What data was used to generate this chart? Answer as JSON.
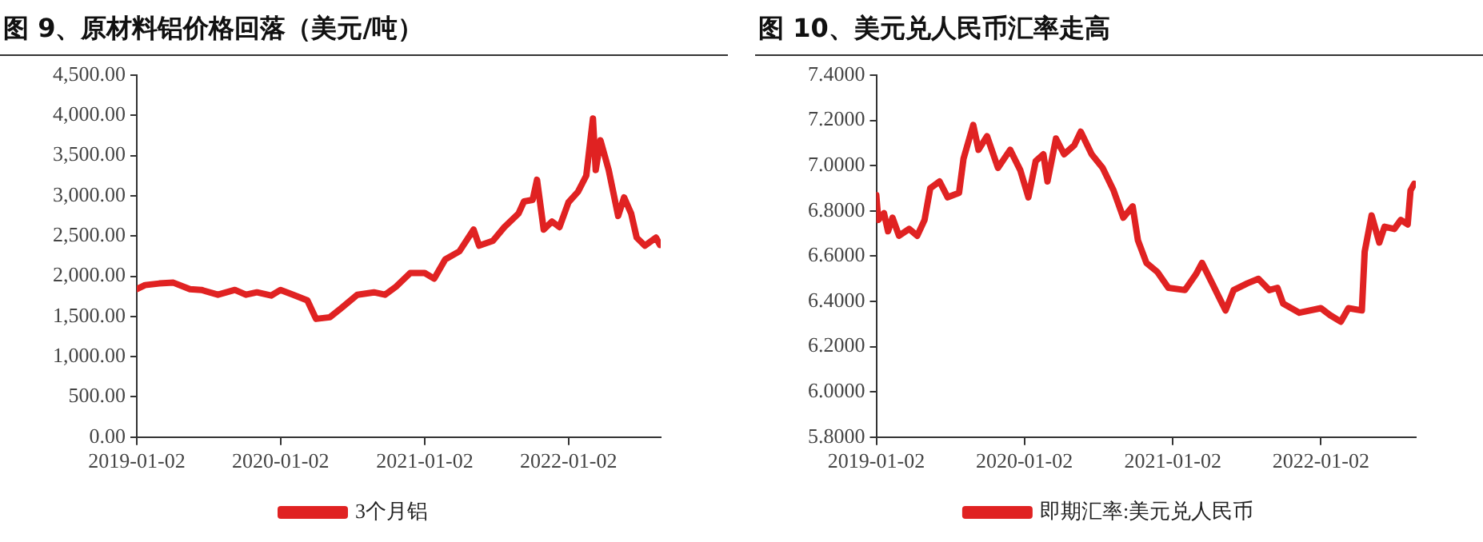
{
  "chart_data": [
    {
      "type": "line",
      "title": "图 9、原材料铝价格回落（美元/吨）",
      "legend": "bottom",
      "grid": false,
      "marker": "none",
      "line_style": "solid",
      "xlim": [
        "2019-01-02",
        "2022-08-24"
      ],
      "xticks": [
        "2019-01-02",
        "2020-01-02",
        "2021-01-02",
        "2022-01-02"
      ],
      "ylim": [
        0,
        4500
      ],
      "yticks": [
        {
          "value": 0,
          "label": "0.00"
        },
        {
          "value": 500,
          "label": "500.00"
        },
        {
          "value": 1000,
          "label": "1,000.00"
        },
        {
          "value": 1500,
          "label": "1,500.00"
        },
        {
          "value": 2000,
          "label": "2,000.00"
        },
        {
          "value": 2500,
          "label": "2,500.00"
        },
        {
          "value": 3000,
          "label": "3,000.00"
        },
        {
          "value": 3500,
          "label": "3,500.00"
        },
        {
          "value": 4000,
          "label": "4,000.00"
        },
        {
          "value": 4500,
          "label": "4,500.00"
        }
      ],
      "x": [
        "2019-01-02",
        "2019-01-23",
        "2019-02-28",
        "2019-04-05",
        "2019-05-17",
        "2019-06-15",
        "2019-07-27",
        "2019-09-08",
        "2019-10-06",
        "2019-11-03",
        "2019-12-09",
        "2020-01-02",
        "2020-02-03",
        "2020-03-10",
        "2020-04-01",
        "2020-05-06",
        "2020-06-03",
        "2020-07-15",
        "2020-08-26",
        "2020-09-23",
        "2020-10-21",
        "2020-11-26",
        "2021-01-02",
        "2021-01-26",
        "2021-02-23",
        "2021-03-31",
        "2021-05-06",
        "2021-05-20",
        "2021-06-24",
        "2021-07-23",
        "2021-08-28",
        "2021-09-11",
        "2021-10-03",
        "2021-10-14",
        "2021-10-31",
        "2021-11-21",
        "2021-12-10",
        "2022-01-02",
        "2022-01-26",
        "2022-02-16",
        "2022-03-05",
        "2022-03-12",
        "2022-03-24",
        "2022-04-14",
        "2022-05-08",
        "2022-05-23",
        "2022-06-10",
        "2022-06-24",
        "2022-07-15",
        "2022-08-12",
        "2022-08-22"
      ],
      "series": [
        {
          "name": "3个月铝",
          "color": "#e02222",
          "values": [
            1840,
            1890,
            1910,
            1920,
            1840,
            1830,
            1770,
            1830,
            1770,
            1800,
            1760,
            1830,
            1770,
            1700,
            1470,
            1490,
            1600,
            1770,
            1800,
            1770,
            1870,
            2040,
            2040,
            1970,
            2210,
            2310,
            2580,
            2380,
            2440,
            2610,
            2780,
            2930,
            2950,
            3200,
            2580,
            2680,
            2610,
            2920,
            3050,
            3250,
            3960,
            3320,
            3690,
            3320,
            2750,
            2980,
            2780,
            2480,
            2380,
            2480,
            2390
          ]
        }
      ]
    },
    {
      "type": "line",
      "title": "图 10、美元兑人民币汇率走高",
      "legend": "bottom",
      "grid": false,
      "marker": "none",
      "line_style": "solid",
      "xlim": [
        "2019-01-02",
        "2022-08-24"
      ],
      "xticks": [
        "2019-01-02",
        "2020-01-02",
        "2021-01-02",
        "2022-01-02"
      ],
      "ylim": [
        5.8,
        7.4
      ],
      "yticks": [
        {
          "value": 5.8,
          "label": "5.8000"
        },
        {
          "value": 6,
          "label": "6.0000"
        },
        {
          "value": 6.2,
          "label": "6.2000"
        },
        {
          "value": 6.4,
          "label": "6.4000"
        },
        {
          "value": 6.6,
          "label": "6.6000"
        },
        {
          "value": 6.8,
          "label": "6.8000"
        },
        {
          "value": 7,
          "label": "7.0000"
        },
        {
          "value": 7.2,
          "label": "7.2000"
        },
        {
          "value": 7.4,
          "label": "7.4000"
        }
      ],
      "x": [
        "2019-01-02",
        "2019-01-07",
        "2019-01-21",
        "2019-01-31",
        "2019-02-11",
        "2019-02-27",
        "2019-03-24",
        "2019-04-13",
        "2019-05-01",
        "2019-05-15",
        "2019-06-07",
        "2019-06-27",
        "2019-07-25",
        "2019-08-05",
        "2019-08-29",
        "2019-09-11",
        "2019-10-02",
        "2019-10-29",
        "2019-11-28",
        "2019-12-23",
        "2020-01-12",
        "2020-01-30",
        "2020-02-18",
        "2020-02-28",
        "2020-03-20",
        "2020-04-09",
        "2020-05-04",
        "2020-05-20",
        "2020-06-16",
        "2020-07-13",
        "2020-08-09",
        "2020-09-02",
        "2020-09-25",
        "2020-10-08",
        "2020-10-29",
        "2020-11-25",
        "2020-12-22",
        "2021-02-01",
        "2021-02-28",
        "2021-03-15",
        "2021-04-09",
        "2021-05-12",
        "2021-06-01",
        "2021-07-05",
        "2021-08-01",
        "2021-08-28",
        "2021-09-17",
        "2021-10-01",
        "2021-11-10",
        "2022-01-02",
        "2022-01-24",
        "2022-02-20",
        "2022-03-11",
        "2022-04-13",
        "2022-04-20",
        "2022-05-07",
        "2022-05-26",
        "2022-06-08",
        "2022-07-02",
        "2022-07-18",
        "2022-08-04",
        "2022-08-11",
        "2022-08-20"
      ],
      "series": [
        {
          "name": "即期汇率:美元兑人民币",
          "color": "#e02222",
          "values": [
            6.87,
            6.76,
            6.79,
            6.71,
            6.77,
            6.69,
            6.72,
            6.69,
            6.76,
            6.9,
            6.93,
            6.86,
            6.88,
            7.03,
            7.18,
            7.07,
            7.13,
            6.99,
            7.07,
            6.98,
            6.86,
            7.02,
            7.05,
            6.93,
            7.12,
            7.05,
            7.09,
            7.15,
            7.05,
            6.99,
            6.89,
            6.77,
            6.82,
            6.67,
            6.57,
            6.53,
            6.46,
            6.45,
            6.52,
            6.57,
            6.48,
            6.36,
            6.45,
            6.48,
            6.5,
            6.45,
            6.46,
            6.39,
            6.35,
            6.37,
            6.34,
            6.31,
            6.37,
            6.36,
            6.62,
            6.78,
            6.66,
            6.73,
            6.72,
            6.76,
            6.74,
            6.89,
            6.92
          ]
        }
      ]
    }
  ]
}
